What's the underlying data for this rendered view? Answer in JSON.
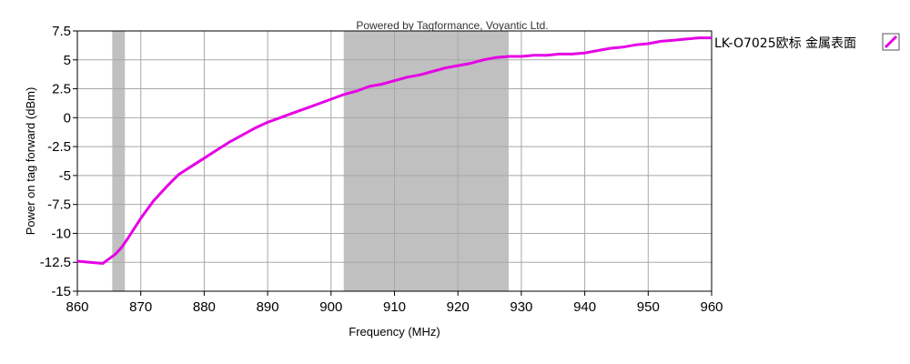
{
  "credit": "Powered by Tagformance, Voyantic Ltd.",
  "chart_data": {
    "type": "line",
    "xlabel": "Frequency (MHz)",
    "ylabel": "Power on tag forward (dBm)",
    "xlim": [
      860,
      960
    ],
    "ylim": [
      -15,
      7.5
    ],
    "x_ticks": [
      860,
      870,
      880,
      890,
      900,
      910,
      920,
      930,
      940,
      950,
      960
    ],
    "y_ticks": [
      7.5,
      5,
      2.5,
      0,
      -2.5,
      -5,
      -7.5,
      -10,
      -12.5,
      -15
    ],
    "x_tick_labels": [
      "860",
      "870",
      "880",
      "890",
      "900",
      "910",
      "920",
      "930",
      "940",
      "950",
      "960"
    ],
    "y_tick_labels": [
      "7.5",
      "5",
      "2.5",
      "0",
      "-2.5",
      "-5",
      "-7.5",
      "-10",
      "-12.5",
      "-15"
    ],
    "grid": true,
    "legend_position": "right",
    "shaded_bands": [
      {
        "x0": 865.5,
        "x1": 867.5
      },
      {
        "x0": 902,
        "x1": 928
      }
    ],
    "band_color": "#c0c0c0",
    "series": [
      {
        "name": "LK-O7025欧标 金属表面",
        "color": "#e600e6",
        "x": [
          860,
          862,
          864,
          865,
          866,
          867,
          868,
          870,
          872,
          874,
          876,
          878,
          880,
          882,
          884,
          886,
          888,
          890,
          892,
          894,
          896,
          898,
          900,
          902,
          904,
          906,
          908,
          910,
          912,
          914,
          916,
          918,
          920,
          922,
          924,
          926,
          928,
          930,
          932,
          934,
          936,
          938,
          940,
          942,
          944,
          946,
          948,
          950,
          952,
          954,
          956,
          958,
          960
        ],
        "y": [
          -12.4,
          -12.5,
          -12.6,
          -12.2,
          -11.8,
          -11.2,
          -10.4,
          -8.7,
          -7.2,
          -6.0,
          -4.9,
          -4.2,
          -3.5,
          -2.8,
          -2.1,
          -1.5,
          -0.9,
          -0.4,
          0.0,
          0.4,
          0.8,
          1.2,
          1.6,
          2.0,
          2.3,
          2.7,
          2.9,
          3.2,
          3.5,
          3.7,
          4.0,
          4.3,
          4.5,
          4.7,
          5.0,
          5.2,
          5.3,
          5.3,
          5.4,
          5.4,
          5.5,
          5.5,
          5.6,
          5.8,
          6.0,
          6.1,
          6.3,
          6.4,
          6.6,
          6.7,
          6.8,
          6.9,
          6.9
        ]
      }
    ]
  }
}
